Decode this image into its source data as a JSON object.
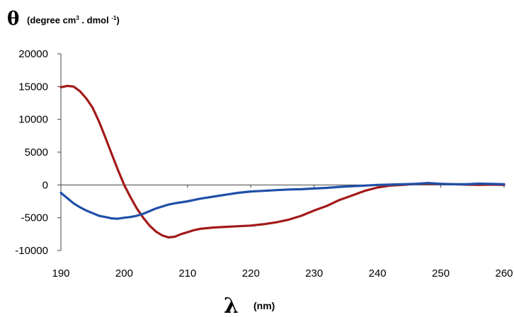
{
  "chart_data": {
    "type": "line",
    "ylabel_symbol": "θ",
    "ylabel_units_main": "(degree cm",
    "ylabel_units_sup1": "3",
    "ylabel_units_mid": " . dmol ",
    "ylabel_units_sup2": "-1",
    "ylabel_units_end": ")",
    "xlabel_symbol": "λ",
    "xlabel_units": "(nm)",
    "xlim": [
      190,
      260
    ],
    "ylim": [
      -10000,
      20000
    ],
    "x_ticks": [
      190,
      200,
      210,
      220,
      230,
      240,
      250,
      260
    ],
    "x_tick_labels": [
      "190",
      "200",
      "210",
      "220",
      "230",
      "240",
      "250",
      "260"
    ],
    "y_ticks": [
      20000,
      15000,
      10000,
      5000,
      0,
      -5000,
      -10000
    ],
    "y_tick_labels": [
      "20000",
      "15000",
      "10000",
      "5000",
      "0",
      "-5000",
      "-10000"
    ],
    "grid": false,
    "series": [
      {
        "color": "#a31a1a",
        "points": [
          [
            190,
            14900
          ],
          [
            191,
            15100
          ],
          [
            192,
            15000
          ],
          [
            193,
            14300
          ],
          [
            194,
            13200
          ],
          [
            195,
            11800
          ],
          [
            196,
            9700
          ],
          [
            197,
            7300
          ],
          [
            198,
            4800
          ],
          [
            199,
            2300
          ],
          [
            200,
            0
          ],
          [
            201,
            -1900
          ],
          [
            202,
            -3600
          ],
          [
            203,
            -5000
          ],
          [
            204,
            -6200
          ],
          [
            205,
            -7100
          ],
          [
            206,
            -7700
          ],
          [
            207,
            -8000
          ],
          [
            208,
            -7900
          ],
          [
            209,
            -7500
          ],
          [
            210,
            -7200
          ],
          [
            211,
            -6900
          ],
          [
            212,
            -6700
          ],
          [
            214,
            -6500
          ],
          [
            216,
            -6400
          ],
          [
            218,
            -6300
          ],
          [
            220,
            -6200
          ],
          [
            222,
            -6000
          ],
          [
            224,
            -5700
          ],
          [
            226,
            -5300
          ],
          [
            228,
            -4700
          ],
          [
            230,
            -3900
          ],
          [
            232,
            -3200
          ],
          [
            234,
            -2300
          ],
          [
            236,
            -1600
          ],
          [
            238,
            -900
          ],
          [
            240,
            -400
          ],
          [
            242,
            -100
          ],
          [
            244,
            0
          ],
          [
            246,
            150
          ],
          [
            248,
            200
          ],
          [
            250,
            150
          ],
          [
            252,
            100
          ],
          [
            254,
            50
          ],
          [
            256,
            0
          ],
          [
            258,
            50
          ],
          [
            260,
            0
          ]
        ]
      },
      {
        "color": "#1f4fa8",
        "points": [
          [
            190,
            -1200
          ],
          [
            191,
            -2000
          ],
          [
            192,
            -2800
          ],
          [
            193,
            -3400
          ],
          [
            194,
            -3900
          ],
          [
            195,
            -4300
          ],
          [
            196,
            -4700
          ],
          [
            197,
            -4900
          ],
          [
            198,
            -5100
          ],
          [
            199,
            -5150
          ],
          [
            200,
            -5000
          ],
          [
            201,
            -4900
          ],
          [
            202,
            -4700
          ],
          [
            203,
            -4400
          ],
          [
            204,
            -4000
          ],
          [
            205,
            -3600
          ],
          [
            206,
            -3300
          ],
          [
            207,
            -3000
          ],
          [
            208,
            -2800
          ],
          [
            210,
            -2500
          ],
          [
            212,
            -2100
          ],
          [
            214,
            -1800
          ],
          [
            216,
            -1500
          ],
          [
            218,
            -1200
          ],
          [
            220,
            -1000
          ],
          [
            222,
            -900
          ],
          [
            224,
            -800
          ],
          [
            226,
            -700
          ],
          [
            228,
            -650
          ],
          [
            230,
            -550
          ],
          [
            232,
            -450
          ],
          [
            234,
            -300
          ],
          [
            236,
            -200
          ],
          [
            238,
            -100
          ],
          [
            240,
            0
          ],
          [
            242,
            50
          ],
          [
            244,
            100
          ],
          [
            246,
            150
          ],
          [
            248,
            300
          ],
          [
            250,
            150
          ],
          [
            252,
            100
          ],
          [
            254,
            100
          ],
          [
            256,
            200
          ],
          [
            258,
            150
          ],
          [
            260,
            100
          ]
        ]
      }
    ]
  }
}
